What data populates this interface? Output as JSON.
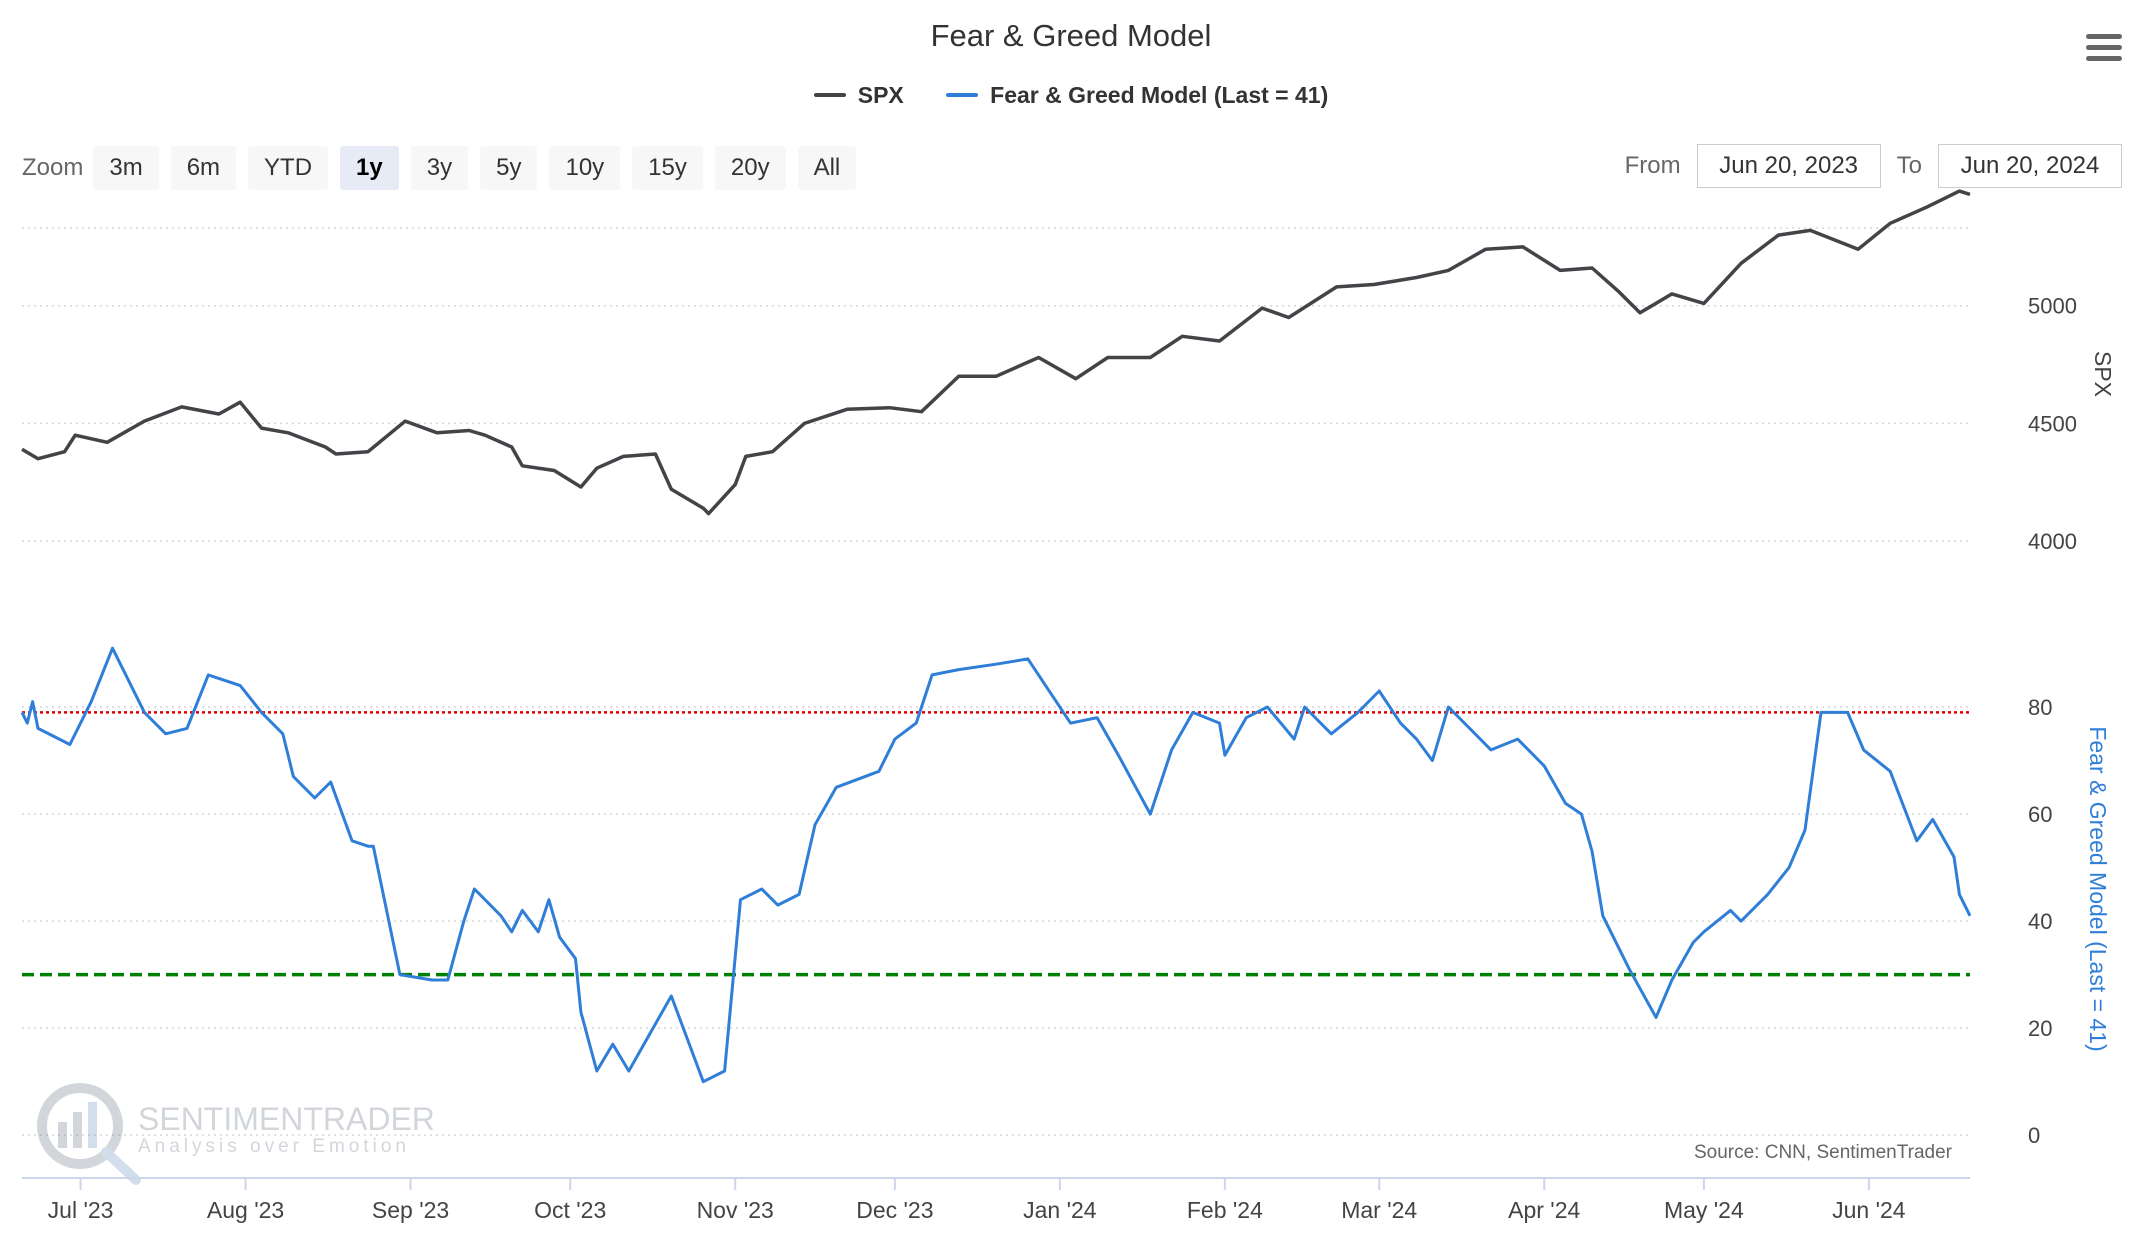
{
  "chart": {
    "title": "Fear & Greed Model",
    "menu_icon": "hamburger-menu-icon",
    "zoom": {
      "label": "Zoom",
      "buttons": [
        "3m",
        "6m",
        "YTD",
        "1y",
        "3y",
        "5y",
        "10y",
        "15y",
        "20y",
        "All"
      ],
      "active": "1y"
    },
    "range": {
      "from_label": "From",
      "from_value": "Jun 20, 2023",
      "to_label": "To",
      "to_value": "Jun 20, 2024"
    },
    "source": "Source: CNN, SentimenTrader",
    "watermark": {
      "brand": "SENTIMENTRADER",
      "tagline": "Analysis over Emotion"
    },
    "colors": {
      "spx": "#434348",
      "fear_greed": "#2f7ed8",
      "greed_line": "#e00000",
      "fear_line": "#008000"
    }
  },
  "chart_data": {
    "type": "line",
    "x_axis": {
      "tick_labels": [
        "Jul '23",
        "Aug '23",
        "Sep '23",
        "Oct '23",
        "Nov '23",
        "Dec '23",
        "Jan '24",
        "Feb '24",
        "Mar '24",
        "Apr '24",
        "May '24",
        "Jun '24"
      ]
    },
    "panes": [
      {
        "ylabel": "SPX",
        "ylim": [
          3750,
          5500
        ],
        "yticks": [
          4000,
          4500,
          5000
        ],
        "series": [
          {
            "name": "SPX",
            "points": [
              [
                "2023-06-20",
                4390
              ],
              [
                "2023-06-23",
                4350
              ],
              [
                "2023-06-28",
                4380
              ],
              [
                "2023-06-30",
                4450
              ],
              [
                "2023-07-06",
                4420
              ],
              [
                "2023-07-13",
                4510
              ],
              [
                "2023-07-20",
                4570
              ],
              [
                "2023-07-27",
                4540
              ],
              [
                "2023-07-31",
                4590
              ],
              [
                "2023-08-04",
                4480
              ],
              [
                "2023-08-09",
                4460
              ],
              [
                "2023-08-16",
                4400
              ],
              [
                "2023-08-18",
                4370
              ],
              [
                "2023-08-24",
                4380
              ],
              [
                "2023-08-31",
                4510
              ],
              [
                "2023-09-06",
                4460
              ],
              [
                "2023-09-12",
                4470
              ],
              [
                "2023-09-15",
                4450
              ],
              [
                "2023-09-20",
                4400
              ],
              [
                "2023-09-22",
                4320
              ],
              [
                "2023-09-28",
                4300
              ],
              [
                "2023-10-03",
                4230
              ],
              [
                "2023-10-06",
                4310
              ],
              [
                "2023-10-11",
                4360
              ],
              [
                "2023-10-17",
                4370
              ],
              [
                "2023-10-20",
                4220
              ],
              [
                "2023-10-26",
                4140
              ],
              [
                "2023-10-27",
                4117
              ],
              [
                "2023-11-01",
                4240
              ],
              [
                "2023-11-03",
                4360
              ],
              [
                "2023-11-08",
                4380
              ],
              [
                "2023-11-14",
                4500
              ],
              [
                "2023-11-22",
                4560
              ],
              [
                "2023-11-30",
                4567
              ],
              [
                "2023-12-06",
                4550
              ],
              [
                "2023-12-13",
                4700
              ],
              [
                "2023-12-20",
                4700
              ],
              [
                "2023-12-28",
                4780
              ],
              [
                "2024-01-04",
                4690
              ],
              [
                "2024-01-10",
                4780
              ],
              [
                "2024-01-18",
                4780
              ],
              [
                "2024-01-24",
                4870
              ],
              [
                "2024-01-31",
                4850
              ],
              [
                "2024-02-08",
                4990
              ],
              [
                "2024-02-13",
                4950
              ],
              [
                "2024-02-22",
                5080
              ],
              [
                "2024-02-29",
                5090
              ],
              [
                "2024-03-08",
                5120
              ],
              [
                "2024-03-14",
                5150
              ],
              [
                "2024-03-21",
                5240
              ],
              [
                "2024-03-28",
                5250
              ],
              [
                "2024-04-04",
                5150
              ],
              [
                "2024-04-10",
                5160
              ],
              [
                "2024-04-15",
                5060
              ],
              [
                "2024-04-19",
                4970
              ],
              [
                "2024-04-25",
                5050
              ],
              [
                "2024-05-01",
                5010
              ],
              [
                "2024-05-08",
                5180
              ],
              [
                "2024-05-15",
                5300
              ],
              [
                "2024-05-21",
                5320
              ],
              [
                "2024-05-30",
                5240
              ],
              [
                "2024-06-05",
                5350
              ],
              [
                "2024-06-12",
                5420
              ],
              [
                "2024-06-18",
                5487
              ],
              [
                "2024-06-20",
                5473
              ]
            ]
          }
        ]
      },
      {
        "ylabel": "Fear & Greed Model (Last = 41)",
        "ylim": [
          -8,
          100
        ],
        "yticks": [
          0,
          20,
          40,
          60,
          80
        ],
        "reference_lines": [
          {
            "y": 79,
            "style": "dotted"
          },
          {
            "y": 30,
            "style": "dashed"
          }
        ],
        "series": [
          {
            "name": "Fear & Greed Model (Last = 41)",
            "points": [
              [
                "2023-06-20",
                79
              ],
              [
                "2023-06-21",
                77
              ],
              [
                "2023-06-22",
                81
              ],
              [
                "2023-06-23",
                76
              ],
              [
                "2023-06-29",
                73
              ],
              [
                "2023-07-03",
                81
              ],
              [
                "2023-07-07",
                91
              ],
              [
                "2023-07-13",
                79
              ],
              [
                "2023-07-17",
                75
              ],
              [
                "2023-07-21",
                76
              ],
              [
                "2023-07-25",
                86
              ],
              [
                "2023-07-31",
                84
              ],
              [
                "2023-08-04",
                79
              ],
              [
                "2023-08-08",
                75
              ],
              [
                "2023-08-10",
                67
              ],
              [
                "2023-08-14",
                63
              ],
              [
                "2023-08-17",
                66
              ],
              [
                "2023-08-21",
                55
              ],
              [
                "2023-08-24",
                54
              ],
              [
                "2023-08-25",
                54
              ],
              [
                "2023-08-30",
                30
              ],
              [
                "2023-09-05",
                29
              ],
              [
                "2023-09-08",
                29
              ],
              [
                "2023-09-11",
                40
              ],
              [
                "2023-09-13",
                46
              ],
              [
                "2023-09-18",
                41
              ],
              [
                "2023-09-20",
                38
              ],
              [
                "2023-09-22",
                42
              ],
              [
                "2023-09-25",
                38
              ],
              [
                "2023-09-27",
                44
              ],
              [
                "2023-09-29",
                37
              ],
              [
                "2023-10-02",
                33
              ],
              [
                "2023-10-03",
                23
              ],
              [
                "2023-10-06",
                12
              ],
              [
                "2023-10-09",
                17
              ],
              [
                "2023-10-12",
                12
              ],
              [
                "2023-10-16",
                19
              ],
              [
                "2023-10-20",
                26
              ],
              [
                "2023-10-23",
                18
              ],
              [
                "2023-10-26",
                10
              ],
              [
                "2023-10-30",
                12
              ],
              [
                "2023-11-02",
                44
              ],
              [
                "2023-11-06",
                46
              ],
              [
                "2023-11-09",
                43
              ],
              [
                "2023-11-13",
                45
              ],
              [
                "2023-11-16",
                58
              ],
              [
                "2023-11-20",
                65
              ],
              [
                "2023-11-28",
                68
              ],
              [
                "2023-12-01",
                74
              ],
              [
                "2023-12-05",
                77
              ],
              [
                "2023-12-08",
                86
              ],
              [
                "2023-12-13",
                87
              ],
              [
                "2023-12-20",
                88
              ],
              [
                "2023-12-26",
                89
              ],
              [
                "2024-01-03",
                77
              ],
              [
                "2024-01-08",
                78
              ],
              [
                "2024-01-12",
                71
              ],
              [
                "2024-01-18",
                60
              ],
              [
                "2024-01-22",
                72
              ],
              [
                "2024-01-26",
                79
              ],
              [
                "2024-01-31",
                77
              ],
              [
                "2024-02-01",
                71
              ],
              [
                "2024-02-05",
                78
              ],
              [
                "2024-02-09",
                80
              ],
              [
                "2024-02-14",
                74
              ],
              [
                "2024-02-16",
                80
              ],
              [
                "2024-02-21",
                75
              ],
              [
                "2024-02-26",
                79
              ],
              [
                "2024-03-01",
                83
              ],
              [
                "2024-03-05",
                77
              ],
              [
                "2024-03-08",
                74
              ],
              [
                "2024-03-11",
                70
              ],
              [
                "2024-03-14",
                80
              ],
              [
                "2024-03-18",
                76
              ],
              [
                "2024-03-22",
                72
              ],
              [
                "2024-03-27",
                74
              ],
              [
                "2024-04-01",
                69
              ],
              [
                "2024-04-05",
                62
              ],
              [
                "2024-04-08",
                60
              ],
              [
                "2024-04-10",
                53
              ],
              [
                "2024-04-12",
                41
              ],
              [
                "2024-04-17",
                31
              ],
              [
                "2024-04-22",
                22
              ],
              [
                "2024-04-25",
                29
              ],
              [
                "2024-04-29",
                36
              ],
              [
                "2024-05-01",
                38
              ],
              [
                "2024-05-06",
                42
              ],
              [
                "2024-05-08",
                40
              ],
              [
                "2024-05-13",
                45
              ],
              [
                "2024-05-17",
                50
              ],
              [
                "2024-05-20",
                57
              ],
              [
                "2024-05-23",
                79
              ],
              [
                "2024-05-28",
                79
              ],
              [
                "2024-05-31",
                72
              ],
              [
                "2024-06-05",
                68
              ],
              [
                "2024-06-10",
                55
              ],
              [
                "2024-06-13",
                59
              ],
              [
                "2024-06-17",
                52
              ],
              [
                "2024-06-18",
                45
              ],
              [
                "2024-06-20",
                41
              ]
            ]
          }
        ]
      }
    ]
  }
}
